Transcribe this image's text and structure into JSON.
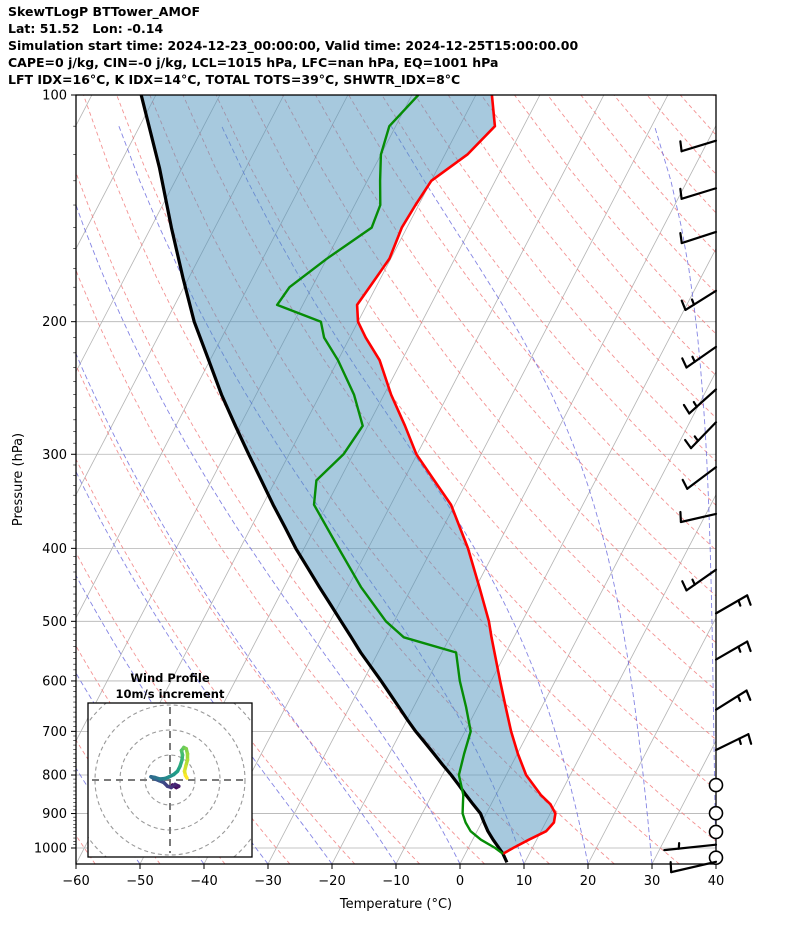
{
  "header": {
    "lines": [
      "SkewTLogP BTTower_AMOF",
      "Lat: 51.52   Lon: -0.14",
      "Simulation start time: 2024-12-23_00:00:00, Valid time: 2024-12-25T15:00:00.00",
      "CAPE=0 j/kg, CIN=-0 j/kg, LCL=1015 hPa, LFC=nan hPa, EQ=1001 hPa",
      "LFT IDX=16°C, K IDX=14°C, TOTAL TOTS=39°C, SHWTR_IDX=8°C"
    ]
  },
  "chart_data": {
    "type": "skewt-logp",
    "x_axis": {
      "label": "Temperature (°C)",
      "min": -60,
      "max": 40,
      "ticks": [
        -60,
        -50,
        -40,
        -30,
        -20,
        -10,
        0,
        10,
        20,
        30,
        40
      ]
    },
    "y_axis": {
      "label": "Pressure (hPa)",
      "scale": "log",
      "min": 100,
      "max": 1050,
      "ticks": [
        100,
        200,
        300,
        400,
        500,
        600,
        700,
        800,
        900,
        1000
      ]
    },
    "background": {
      "isotherms_c": {
        "from": -130,
        "to": 40,
        "step": 10
      },
      "dry_adiabats_theta_c": {
        "from": -60,
        "to": 220,
        "step": 10
      },
      "moist_adiabats_t0_c": {
        "from": -60,
        "to": 100,
        "step": 10
      }
    },
    "profiles": {
      "pressure_hpa": [
        100,
        110,
        120,
        130,
        140,
        150,
        165,
        180,
        190,
        200,
        210,
        225,
        250,
        275,
        300,
        325,
        350,
        400,
        450,
        500,
        525,
        550,
        600,
        650,
        700,
        750,
        800,
        850,
        875,
        900,
        925,
        950,
        975,
        1000,
        1018
      ],
      "temperature_c": [
        -57.5,
        -54.5,
        -56.5,
        -60.0,
        -60.5,
        -60.8,
        -60.2,
        -61.0,
        -61.5,
        -60.0,
        -57.5,
        -53.5,
        -48.9,
        -44.2,
        -40.1,
        -35.2,
        -30.6,
        -24.4,
        -19.5,
        -15.2,
        -13.5,
        -11.8,
        -8.6,
        -5.6,
        -2.8,
        0.1,
        3.1,
        7.0,
        9.3,
        10.8,
        11.3,
        10.8,
        8.8,
        7.0,
        5.9
      ],
      "dewpoint_c": [
        -69,
        -71,
        -70,
        -68,
        -66,
        -65.5,
        -70,
        -73.5,
        -74,
        -65.8,
        -64,
        -60,
        -54.7,
        -50.8,
        -51.5,
        -53.6,
        -52.0,
        -44.6,
        -38.0,
        -31.3,
        -27.2,
        -17.8,
        -14.9,
        -11.8,
        -9.1,
        -8.3,
        -7.4,
        -5.1,
        -4.4,
        -3.7,
        -2.5,
        -1.0,
        1.3,
        4.2,
        5.9
      ],
      "parcel_pressure_hpa": [
        100,
        125,
        150,
        175,
        200,
        225,
        250,
        275,
        300,
        325,
        350,
        375,
        400,
        425,
        450,
        475,
        500,
        525,
        550,
        575,
        600,
        625,
        650,
        675,
        700,
        725,
        750,
        775,
        800,
        825,
        850,
        875,
        900,
        925,
        950,
        975,
        1000,
        1018,
        1045
      ],
      "parcel_temperature_c": [
        -112.3,
        -103.5,
        -96.8,
        -90.9,
        -85.6,
        -80.2,
        -75.4,
        -70.7,
        -66.3,
        -62.2,
        -58.4,
        -54.7,
        -51.3,
        -47.8,
        -44.5,
        -41.3,
        -38.3,
        -35.4,
        -32.7,
        -29.9,
        -27.2,
        -24.7,
        -22.3,
        -20.0,
        -17.7,
        -15.3,
        -13.0,
        -10.8,
        -8.6,
        -6.6,
        -4.7,
        -2.8,
        -0.9,
        0.4,
        1.7,
        3.2,
        4.8,
        5.9,
        7.2
      ]
    },
    "wind_barbs": [
      {
        "p": 115,
        "shaft_angle_deg": 197,
        "full": 1,
        "half": 0
      },
      {
        "p": 133,
        "shaft_angle_deg": 197,
        "full": 1,
        "half": 0
      },
      {
        "p": 152,
        "shaft_angle_deg": 198,
        "full": 1,
        "half": 0
      },
      {
        "p": 182,
        "shaft_angle_deg": 212,
        "full": 1,
        "half": 1
      },
      {
        "p": 216,
        "shaft_angle_deg": 215,
        "full": 1,
        "half": 1
      },
      {
        "p": 246,
        "shaft_angle_deg": 222,
        "full": 1,
        "half": 1
      },
      {
        "p": 272,
        "shaft_angle_deg": 226,
        "full": 1,
        "half": 1
      },
      {
        "p": 312,
        "shaft_angle_deg": 217,
        "full": 1,
        "half": 0
      },
      {
        "p": 360,
        "shaft_angle_deg": 193,
        "full": 1,
        "half": 0
      },
      {
        "p": 427,
        "shaft_angle_deg": 215,
        "full": 1,
        "half": 1
      },
      {
        "p": 488,
        "shaft_angle_deg": 30,
        "full": 1,
        "half": 1
      },
      {
        "p": 562,
        "shaft_angle_deg": 30,
        "full": 1,
        "half": 1
      },
      {
        "p": 655,
        "shaft_angle_deg": 32,
        "full": 1,
        "half": 1
      },
      {
        "p": 741,
        "shaft_angle_deg": 26,
        "full": 1,
        "half": 1
      },
      {
        "p": 825,
        "calm": true
      },
      {
        "p": 899,
        "calm": true
      },
      {
        "p": 952,
        "calm": true
      },
      {
        "p": 990,
        "shaft_angle_deg": 186,
        "full": 0,
        "half": 1,
        "len": 52
      },
      {
        "p": 1030,
        "calm": true
      },
      {
        "p": 1043,
        "shaft_angle_deg": 193,
        "full": 1,
        "half": 0,
        "len": 46
      }
    ],
    "hodograph": {
      "title": "Wind Profile",
      "subtitle": "10m/s increment",
      "ring_increment_ms": 10,
      "rings_ms": [
        10,
        20,
        30,
        40
      ],
      "trace_uv_ms": [
        [
          1,
          -2
        ],
        [
          2.5,
          -3
        ],
        [
          3.5,
          -2.5
        ],
        [
          2,
          -1.8
        ],
        [
          0.5,
          -3
        ],
        [
          -1,
          -2.5
        ],
        [
          -2.5,
          -1
        ],
        [
          -4.5,
          -0.2
        ],
        [
          -6.5,
          0.6
        ],
        [
          -7.6,
          1.3
        ],
        [
          -6,
          1
        ],
        [
          -4,
          0.4
        ],
        [
          -2,
          0.6
        ],
        [
          -0.5,
          1.2
        ],
        [
          1.5,
          2.2
        ],
        [
          3,
          3.5
        ],
        [
          4,
          5.5
        ],
        [
          4.8,
          8
        ],
        [
          5,
          10
        ],
        [
          4.6,
          11.8
        ],
        [
          5.5,
          13
        ],
        [
          6.5,
          12.5
        ],
        [
          7,
          10.5
        ],
        [
          7,
          8
        ],
        [
          6.3,
          5.5
        ],
        [
          5.8,
          3.5
        ],
        [
          6.2,
          1.8
        ],
        [
          6.8,
          0.8
        ]
      ]
    },
    "colors": {
      "temperature": "#ff0000",
      "dewpoint": "#068c06",
      "parcel": "#000000",
      "cape_fill": "#4f94bd",
      "isotherm": "#b3b3b3",
      "grid": "#b3b3b3",
      "dry_adiabat": "#f28080",
      "moist_adiabat": "#6666dd",
      "barb": "#000000",
      "hodograph_ring": "#999999",
      "viridis": [
        "#440154",
        "#46327e",
        "#365c8d",
        "#277f8e",
        "#1fa187",
        "#4ac16d",
        "#a0da39",
        "#fde725"
      ]
    }
  }
}
